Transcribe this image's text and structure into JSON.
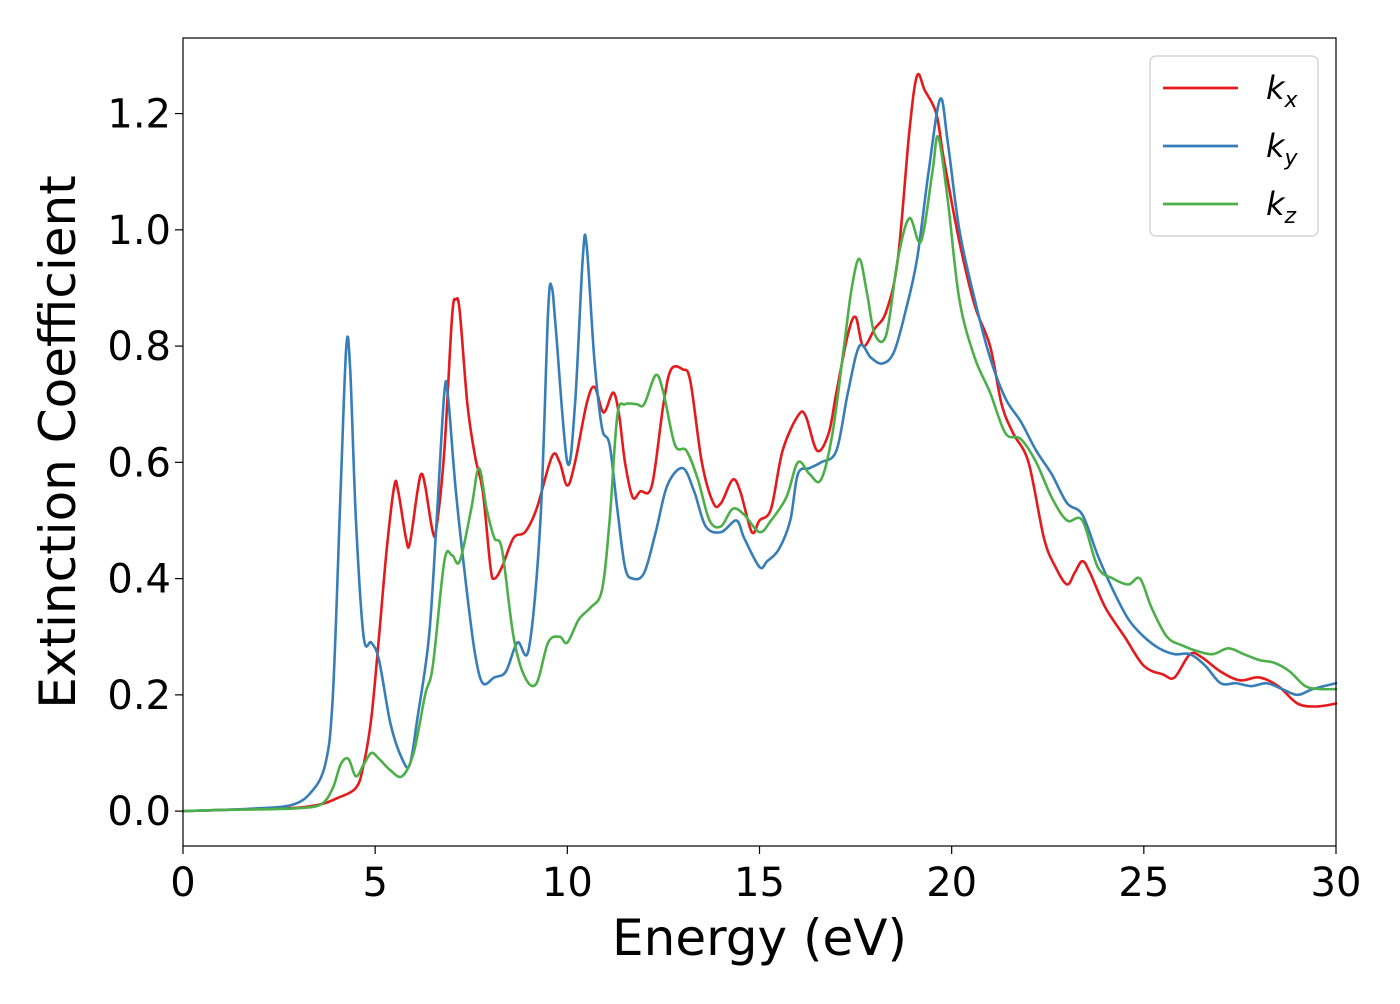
{
  "chart_data": {
    "type": "line",
    "title": "",
    "xlabel": "Energy (eV)",
    "ylabel": "Extinction Coefficient",
    "xlim": [
      0,
      30
    ],
    "ylim": [
      -0.06,
      1.33
    ],
    "xticks": [
      0,
      5,
      10,
      15,
      20,
      25,
      30
    ],
    "xtick_labels": [
      "0",
      "5",
      "10",
      "15",
      "20",
      "25",
      "30"
    ],
    "yticks": [
      0.0,
      0.2,
      0.4,
      0.6,
      0.8,
      1.0,
      1.2
    ],
    "ytick_labels": [
      "0.0",
      "0.2",
      "0.4",
      "0.6",
      "0.8",
      "1.0",
      "1.2"
    ],
    "grid": false,
    "legend_position": "top-right",
    "series": [
      {
        "name": "k_x",
        "label_main": "k",
        "label_sub": "x",
        "color": "#e41a1c",
        "points": [
          [
            0,
            0
          ],
          [
            1,
            0.002
          ],
          [
            2,
            0.004
          ],
          [
            3,
            0.006
          ],
          [
            3.6,
            0.012
          ],
          [
            4,
            0.022
          ],
          [
            4.5,
            0.04
          ],
          [
            4.7,
            0.08
          ],
          [
            4.9,
            0.16
          ],
          [
            5.1,
            0.3
          ],
          [
            5.3,
            0.45
          ],
          [
            5.5,
            0.56
          ],
          [
            5.6,
            0.55
          ],
          [
            5.8,
            0.47
          ],
          [
            5.9,
            0.46
          ],
          [
            6.1,
            0.55
          ],
          [
            6.2,
            0.58
          ],
          [
            6.3,
            0.56
          ],
          [
            6.5,
            0.48
          ],
          [
            6.6,
            0.49
          ],
          [
            6.8,
            0.62
          ],
          [
            7.0,
            0.85
          ],
          [
            7.1,
            0.88
          ],
          [
            7.2,
            0.86
          ],
          [
            7.4,
            0.7
          ],
          [
            7.6,
            0.61
          ],
          [
            7.8,
            0.55
          ],
          [
            8.0,
            0.42
          ],
          [
            8.1,
            0.4
          ],
          [
            8.3,
            0.42
          ],
          [
            8.6,
            0.47
          ],
          [
            8.9,
            0.48
          ],
          [
            9.2,
            0.52
          ],
          [
            9.6,
            0.61
          ],
          [
            9.8,
            0.6
          ],
          [
            10.0,
            0.56
          ],
          [
            10.2,
            0.6
          ],
          [
            10.5,
            0.7
          ],
          [
            10.7,
            0.73
          ],
          [
            10.9,
            0.69
          ],
          [
            11.0,
            0.69
          ],
          [
            11.2,
            0.72
          ],
          [
            11.35,
            0.68
          ],
          [
            11.5,
            0.6
          ],
          [
            11.7,
            0.54
          ],
          [
            11.9,
            0.55
          ],
          [
            12.2,
            0.56
          ],
          [
            12.5,
            0.7
          ],
          [
            12.7,
            0.76
          ],
          [
            13.0,
            0.76
          ],
          [
            13.2,
            0.74
          ],
          [
            13.5,
            0.6
          ],
          [
            13.8,
            0.53
          ],
          [
            14.0,
            0.53
          ],
          [
            14.3,
            0.57
          ],
          [
            14.5,
            0.55
          ],
          [
            14.8,
            0.48
          ],
          [
            15.0,
            0.5
          ],
          [
            15.3,
            0.52
          ],
          [
            15.6,
            0.62
          ],
          [
            16.0,
            0.68
          ],
          [
            16.2,
            0.68
          ],
          [
            16.5,
            0.62
          ],
          [
            16.8,
            0.65
          ],
          [
            17.0,
            0.72
          ],
          [
            17.3,
            0.82
          ],
          [
            17.5,
            0.85
          ],
          [
            17.7,
            0.8
          ],
          [
            18.0,
            0.83
          ],
          [
            18.3,
            0.86
          ],
          [
            18.6,
            0.95
          ],
          [
            18.9,
            1.17
          ],
          [
            19.1,
            1.265
          ],
          [
            19.3,
            1.24
          ],
          [
            19.6,
            1.2
          ],
          [
            19.8,
            1.12
          ],
          [
            20.2,
            0.98
          ],
          [
            20.6,
            0.87
          ],
          [
            21.0,
            0.8
          ],
          [
            21.3,
            0.7
          ],
          [
            21.6,
            0.65
          ],
          [
            22.0,
            0.6
          ],
          [
            22.4,
            0.47
          ],
          [
            22.7,
            0.42
          ],
          [
            23.0,
            0.39
          ],
          [
            23.2,
            0.41
          ],
          [
            23.4,
            0.43
          ],
          [
            23.6,
            0.41
          ],
          [
            24.0,
            0.35
          ],
          [
            24.5,
            0.3
          ],
          [
            25.0,
            0.25
          ],
          [
            25.5,
            0.235
          ],
          [
            25.8,
            0.23
          ],
          [
            26.2,
            0.27
          ],
          [
            26.5,
            0.265
          ],
          [
            27.0,
            0.24
          ],
          [
            27.5,
            0.225
          ],
          [
            28.0,
            0.23
          ],
          [
            28.5,
            0.215
          ],
          [
            29.0,
            0.185
          ],
          [
            29.5,
            0.18
          ],
          [
            30.0,
            0.185
          ]
        ]
      },
      {
        "name": "k_y",
        "label_main": "k",
        "label_sub": "y",
        "color": "#377eb8",
        "points": [
          [
            0,
            0
          ],
          [
            1,
            0.002
          ],
          [
            2,
            0.005
          ],
          [
            2.8,
            0.01
          ],
          [
            3.3,
            0.03
          ],
          [
            3.7,
            0.08
          ],
          [
            3.9,
            0.2
          ],
          [
            4.1,
            0.55
          ],
          [
            4.25,
            0.8
          ],
          [
            4.35,
            0.76
          ],
          [
            4.5,
            0.5
          ],
          [
            4.7,
            0.3
          ],
          [
            4.9,
            0.29
          ],
          [
            5.1,
            0.26
          ],
          [
            5.4,
            0.15
          ],
          [
            5.7,
            0.09
          ],
          [
            5.9,
            0.08
          ],
          [
            6.1,
            0.16
          ],
          [
            6.4,
            0.3
          ],
          [
            6.6,
            0.5
          ],
          [
            6.8,
            0.72
          ],
          [
            6.9,
            0.71
          ],
          [
            7.1,
            0.55
          ],
          [
            7.4,
            0.37
          ],
          [
            7.6,
            0.27
          ],
          [
            7.8,
            0.22
          ],
          [
            8.1,
            0.23
          ],
          [
            8.4,
            0.24
          ],
          [
            8.7,
            0.29
          ],
          [
            9.0,
            0.28
          ],
          [
            9.3,
            0.5
          ],
          [
            9.5,
            0.86
          ],
          [
            9.6,
            0.9
          ],
          [
            9.7,
            0.83
          ],
          [
            10.0,
            0.6
          ],
          [
            10.2,
            0.7
          ],
          [
            10.4,
            0.95
          ],
          [
            10.5,
            0.975
          ],
          [
            10.7,
            0.78
          ],
          [
            10.9,
            0.66
          ],
          [
            11.1,
            0.63
          ],
          [
            11.3,
            0.52
          ],
          [
            11.5,
            0.42
          ],
          [
            11.7,
            0.4
          ],
          [
            12.0,
            0.41
          ],
          [
            12.3,
            0.48
          ],
          [
            12.6,
            0.56
          ],
          [
            13.0,
            0.59
          ],
          [
            13.3,
            0.55
          ],
          [
            13.6,
            0.49
          ],
          [
            14.0,
            0.48
          ],
          [
            14.4,
            0.5
          ],
          [
            14.6,
            0.47
          ],
          [
            15.0,
            0.42
          ],
          [
            15.2,
            0.43
          ],
          [
            15.5,
            0.45
          ],
          [
            15.8,
            0.5
          ],
          [
            16.0,
            0.58
          ],
          [
            16.3,
            0.59
          ],
          [
            16.6,
            0.6
          ],
          [
            17.0,
            0.62
          ],
          [
            17.3,
            0.72
          ],
          [
            17.6,
            0.8
          ],
          [
            17.9,
            0.78
          ],
          [
            18.2,
            0.77
          ],
          [
            18.5,
            0.79
          ],
          [
            18.8,
            0.86
          ],
          [
            19.1,
            0.95
          ],
          [
            19.4,
            1.1
          ],
          [
            19.7,
            1.225
          ],
          [
            19.9,
            1.15
          ],
          [
            20.2,
            1.0
          ],
          [
            20.6,
            0.88
          ],
          [
            21.0,
            0.78
          ],
          [
            21.4,
            0.71
          ],
          [
            21.8,
            0.67
          ],
          [
            22.2,
            0.62
          ],
          [
            22.6,
            0.58
          ],
          [
            23.0,
            0.53
          ],
          [
            23.4,
            0.51
          ],
          [
            23.8,
            0.44
          ],
          [
            24.2,
            0.38
          ],
          [
            24.6,
            0.33
          ],
          [
            25.0,
            0.3
          ],
          [
            25.4,
            0.28
          ],
          [
            25.8,
            0.27
          ],
          [
            26.2,
            0.27
          ],
          [
            26.6,
            0.25
          ],
          [
            27.0,
            0.22
          ],
          [
            27.4,
            0.22
          ],
          [
            27.8,
            0.215
          ],
          [
            28.2,
            0.22
          ],
          [
            28.6,
            0.21
          ],
          [
            29.0,
            0.2
          ],
          [
            29.4,
            0.21
          ],
          [
            30.0,
            0.22
          ]
        ]
      },
      {
        "name": "k_z",
        "label_main": "k",
        "label_sub": "z",
        "color": "#4daf4a",
        "points": [
          [
            0,
            0
          ],
          [
            1,
            0.002
          ],
          [
            2,
            0.003
          ],
          [
            3,
            0.005
          ],
          [
            3.6,
            0.012
          ],
          [
            3.9,
            0.04
          ],
          [
            4.1,
            0.08
          ],
          [
            4.3,
            0.09
          ],
          [
            4.5,
            0.06
          ],
          [
            4.7,
            0.08
          ],
          [
            4.9,
            0.1
          ],
          [
            5.1,
            0.09
          ],
          [
            5.4,
            0.07
          ],
          [
            5.7,
            0.06
          ],
          [
            6.0,
            0.1
          ],
          [
            6.3,
            0.2
          ],
          [
            6.5,
            0.25
          ],
          [
            6.8,
            0.43
          ],
          [
            7.0,
            0.44
          ],
          [
            7.2,
            0.43
          ],
          [
            7.5,
            0.52
          ],
          [
            7.7,
            0.59
          ],
          [
            7.9,
            0.52
          ],
          [
            8.1,
            0.47
          ],
          [
            8.3,
            0.45
          ],
          [
            8.6,
            0.3
          ],
          [
            8.9,
            0.23
          ],
          [
            9.2,
            0.22
          ],
          [
            9.5,
            0.29
          ],
          [
            9.8,
            0.3
          ],
          [
            10.0,
            0.29
          ],
          [
            10.3,
            0.33
          ],
          [
            10.6,
            0.35
          ],
          [
            10.9,
            0.38
          ],
          [
            11.1,
            0.5
          ],
          [
            11.3,
            0.68
          ],
          [
            11.5,
            0.7
          ],
          [
            11.8,
            0.7
          ],
          [
            12.0,
            0.7
          ],
          [
            12.3,
            0.75
          ],
          [
            12.5,
            0.72
          ],
          [
            12.8,
            0.63
          ],
          [
            13.1,
            0.62
          ],
          [
            13.4,
            0.57
          ],
          [
            13.7,
            0.5
          ],
          [
            14.0,
            0.49
          ],
          [
            14.3,
            0.52
          ],
          [
            14.6,
            0.51
          ],
          [
            15.0,
            0.48
          ],
          [
            15.3,
            0.5
          ],
          [
            15.7,
            0.54
          ],
          [
            16.0,
            0.6
          ],
          [
            16.3,
            0.58
          ],
          [
            16.6,
            0.57
          ],
          [
            16.9,
            0.65
          ],
          [
            17.2,
            0.8
          ],
          [
            17.4,
            0.9
          ],
          [
            17.6,
            0.95
          ],
          [
            17.8,
            0.89
          ],
          [
            18.0,
            0.82
          ],
          [
            18.3,
            0.82
          ],
          [
            18.6,
            0.95
          ],
          [
            18.9,
            1.02
          ],
          [
            19.2,
            0.98
          ],
          [
            19.5,
            1.1
          ],
          [
            19.65,
            1.16
          ],
          [
            19.9,
            1.05
          ],
          [
            20.2,
            0.88
          ],
          [
            20.6,
            0.78
          ],
          [
            21.0,
            0.72
          ],
          [
            21.4,
            0.65
          ],
          [
            21.8,
            0.64
          ],
          [
            22.2,
            0.6
          ],
          [
            22.6,
            0.54
          ],
          [
            23.0,
            0.5
          ],
          [
            23.4,
            0.5
          ],
          [
            23.8,
            0.42
          ],
          [
            24.2,
            0.4
          ],
          [
            24.6,
            0.39
          ],
          [
            24.9,
            0.4
          ],
          [
            25.2,
            0.35
          ],
          [
            25.6,
            0.3
          ],
          [
            26.0,
            0.285
          ],
          [
            26.4,
            0.275
          ],
          [
            26.8,
            0.27
          ],
          [
            27.2,
            0.28
          ],
          [
            27.6,
            0.27
          ],
          [
            28.0,
            0.26
          ],
          [
            28.4,
            0.255
          ],
          [
            28.8,
            0.24
          ],
          [
            29.2,
            0.215
          ],
          [
            29.6,
            0.21
          ],
          [
            30.0,
            0.21
          ]
        ]
      }
    ]
  }
}
